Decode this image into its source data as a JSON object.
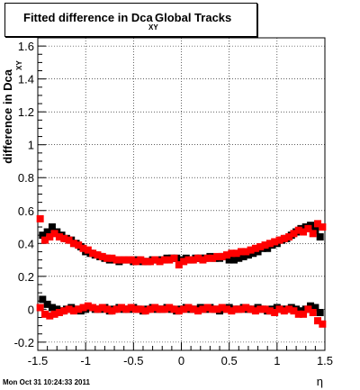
{
  "chart_data": {
    "type": "scatter",
    "title_main": "Fitted difference in Dca",
    "title_subscript": "XY",
    "title_rest": "Global Tracks",
    "ylabel": "difference in Dca",
    "ylabel_subscript": "XY",
    "xlabel": "η",
    "xlim": [
      -1.5,
      1.5
    ],
    "ylim": [
      -0.25,
      1.65
    ],
    "grid": true,
    "x_tick_labels": [
      "-1.5",
      "-1",
      "-0.5",
      "0",
      "0.5",
      "1",
      "1.5"
    ],
    "y_tick_labels": [
      "-0.2",
      "0",
      "0.2",
      "0.4",
      "0.6",
      "0.8",
      "1",
      "1.2",
      "1.4",
      "1.6"
    ],
    "series": [
      {
        "color": "#000000",
        "x": [
          -1.45,
          -1.4,
          -1.35,
          -1.3,
          -1.25,
          -1.2,
          -1.15,
          -1.1,
          -1.05,
          -1,
          -0.95,
          -0.9,
          -0.85,
          -0.8,
          -0.75,
          -0.7,
          -0.65,
          -0.6,
          -0.55,
          -0.5,
          -0.45,
          -0.4,
          -0.35,
          -0.3,
          -0.25,
          -0.2,
          -0.15,
          -0.1,
          -0.05,
          0,
          0.05,
          0.1,
          0.15,
          0.2,
          0.25,
          0.3,
          0.35,
          0.4,
          0.45,
          0.5,
          0.55,
          0.6,
          0.65,
          0.7,
          0.75,
          0.8,
          0.85,
          0.9,
          0.95,
          1,
          1.05,
          1.1,
          1.15,
          1.2,
          1.25,
          1.3,
          1.35,
          1.4,
          1.45
        ],
        "y": [
          0.45,
          0.47,
          0.5,
          0.47,
          0.45,
          0.43,
          0.42,
          0.4,
          0.38,
          0.35,
          0.34,
          0.33,
          0.32,
          0.31,
          0.3,
          0.3,
          0.29,
          0.3,
          0.3,
          0.29,
          0.3,
          0.29,
          0.29,
          0.3,
          0.3,
          0.3,
          0.31,
          0.31,
          0.31,
          0.3,
          0.31,
          0.3,
          0.31,
          0.31,
          0.31,
          0.32,
          0.31,
          0.31,
          0.32,
          0.3,
          0.3,
          0.31,
          0.32,
          0.33,
          0.34,
          0.35,
          0.37,
          0.37,
          0.39,
          0.4,
          0.42,
          0.43,
          0.45,
          0.47,
          0.49,
          0.5,
          0.51,
          0.48,
          0.44
        ]
      },
      {
        "color": "#000000",
        "x": [
          -1.45,
          -1.4,
          -1.35,
          -1.3,
          -1.25,
          -1.2,
          -1.15,
          -1.1,
          -1.05,
          -1,
          -0.95,
          -0.9,
          -0.85,
          -0.8,
          -0.75,
          -0.7,
          -0.65,
          -0.6,
          -0.55,
          -0.5,
          -0.45,
          -0.4,
          -0.35,
          -0.3,
          -0.25,
          -0.2,
          -0.15,
          -0.1,
          -0.05,
          0,
          0.05,
          0.1,
          0.15,
          0.2,
          0.25,
          0.3,
          0.35,
          0.4,
          0.45,
          0.5,
          0.55,
          0.6,
          0.65,
          0.7,
          0.75,
          0.8,
          0.85,
          0.9,
          0.95,
          1,
          1.05,
          1.1,
          1.15,
          1.2,
          1.25,
          1.3,
          1.35,
          1.4,
          1.45
        ],
        "y": [
          0.06,
          0.03,
          0.01,
          0.0,
          -0.01,
          0.0,
          0.01,
          0.0,
          -0.01,
          0.0,
          0.01,
          0.0,
          0.0,
          0.01,
          -0.01,
          0.0,
          0.01,
          0.0,
          0.0,
          0.01,
          0.0,
          -0.01,
          0.0,
          0.01,
          0.0,
          0.0,
          0.01,
          0.0,
          -0.01,
          0.0,
          0.01,
          0.0,
          0.0,
          0.01,
          0.0,
          0.01,
          0.0,
          -0.01,
          0.0,
          0.01,
          0.0,
          0.0,
          0.01,
          0.0,
          0.0,
          0.01,
          0.0,
          -0.01,
          0.0,
          0.01,
          0.0,
          0.0,
          0.01,
          0.0,
          -0.01,
          0.0,
          0.02,
          0.01,
          -0.02
        ]
      },
      {
        "color": "#ff0000",
        "x": [
          -1.475,
          -1.425,
          -1.375,
          -1.325,
          -1.275,
          -1.225,
          -1.175,
          -1.125,
          -1.075,
          -1.025,
          -0.975,
          -0.925,
          -0.875,
          -0.825,
          -0.775,
          -0.725,
          -0.675,
          -0.625,
          -0.575,
          -0.525,
          -0.475,
          -0.425,
          -0.375,
          -0.325,
          -0.275,
          -0.225,
          -0.175,
          -0.125,
          -0.075,
          -0.025,
          0.025,
          0.075,
          0.125,
          0.175,
          0.225,
          0.275,
          0.325,
          0.375,
          0.425,
          0.475,
          0.525,
          0.575,
          0.625,
          0.675,
          0.725,
          0.775,
          0.825,
          0.875,
          0.925,
          0.975,
          1.025,
          1.075,
          1.125,
          1.175,
          1.225,
          1.275,
          1.325,
          1.375,
          1.425,
          1.475
        ],
        "y": [
          0.55,
          0.42,
          0.44,
          0.46,
          0.44,
          0.43,
          0.42,
          0.4,
          0.39,
          0.37,
          0.36,
          0.34,
          0.33,
          0.32,
          0.31,
          0.31,
          0.3,
          0.3,
          0.3,
          0.3,
          0.29,
          0.3,
          0.29,
          0.29,
          0.3,
          0.29,
          0.3,
          0.3,
          0.31,
          0.27,
          0.29,
          0.3,
          0.3,
          0.31,
          0.3,
          0.31,
          0.31,
          0.32,
          0.32,
          0.33,
          0.34,
          0.34,
          0.35,
          0.35,
          0.36,
          0.37,
          0.38,
          0.39,
          0.4,
          0.41,
          0.42,
          0.43,
          0.44,
          0.46,
          0.48,
          0.47,
          0.49,
          0.46,
          0.52,
          0.5
        ]
      },
      {
        "color": "#ff0000",
        "x": [
          -1.475,
          -1.425,
          -1.375,
          -1.325,
          -1.275,
          -1.225,
          -1.175,
          -1.125,
          -1.075,
          -1.025,
          -0.975,
          -0.925,
          -0.875,
          -0.825,
          -0.775,
          -0.725,
          -0.675,
          -0.625,
          -0.575,
          -0.525,
          -0.475,
          -0.425,
          -0.375,
          -0.325,
          -0.275,
          -0.225,
          -0.175,
          -0.125,
          -0.075,
          -0.025,
          0.025,
          0.075,
          0.125,
          0.175,
          0.225,
          0.275,
          0.325,
          0.375,
          0.425,
          0.475,
          0.525,
          0.575,
          0.625,
          0.675,
          0.725,
          0.775,
          0.825,
          0.875,
          0.925,
          0.975,
          1.025,
          1.075,
          1.125,
          1.175,
          1.225,
          1.275,
          1.325,
          1.375,
          1.425,
          1.475
        ],
        "y": [
          0.01,
          -0.03,
          -0.04,
          -0.03,
          -0.02,
          -0.01,
          0.0,
          -0.01,
          0.0,
          0.01,
          0.02,
          0.01,
          0.0,
          0.01,
          0.0,
          -0.01,
          0.0,
          0.01,
          0.0,
          0.01,
          0.0,
          0.0,
          -0.01,
          0.0,
          0.01,
          0.0,
          0.0,
          0.01,
          0.0,
          -0.01,
          0.0,
          0.01,
          0.0,
          -0.01,
          0.0,
          0.01,
          0.0,
          0.0,
          0.01,
          0.0,
          -0.01,
          0.0,
          0.0,
          0.01,
          0.0,
          -0.01,
          0.0,
          0.0,
          -0.01,
          -0.02,
          0.0,
          -0.01,
          0.0,
          -0.01,
          -0.03,
          -0.03,
          0.0,
          -0.02,
          -0.07,
          -0.09
        ]
      }
    ]
  },
  "footer": {
    "timestamp": "Mon Oct 31 10:24:33 2011"
  }
}
